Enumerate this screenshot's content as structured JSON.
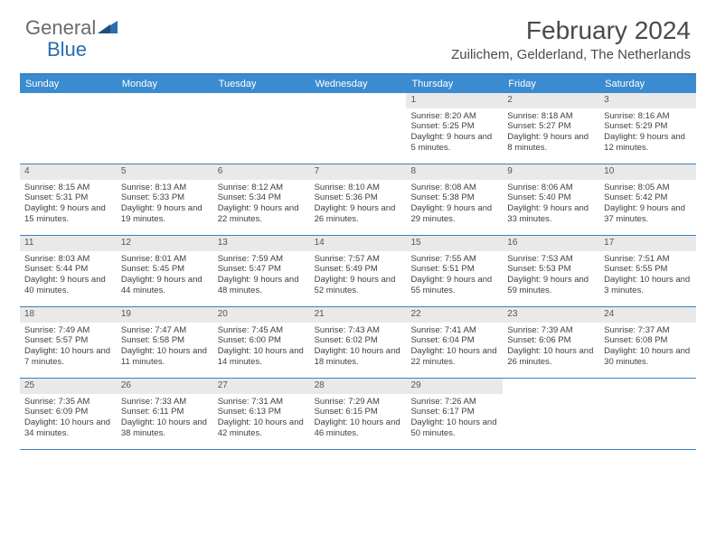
{
  "logo": {
    "part1": "General",
    "part2": "Blue"
  },
  "title": "February 2024",
  "location": "Zuilichem, Gelderland, The Netherlands",
  "colors": {
    "header_bg": "#3b8bd0",
    "rule": "#3b7fbf",
    "daynum_bg": "#e9e9e9",
    "logo_gray": "#6a6a6a",
    "logo_blue": "#2a6db0",
    "text": "#404040"
  },
  "day_headers": [
    "Sunday",
    "Monday",
    "Tuesday",
    "Wednesday",
    "Thursday",
    "Friday",
    "Saturday"
  ],
  "weeks": [
    [
      {
        "empty": true
      },
      {
        "empty": true
      },
      {
        "empty": true
      },
      {
        "empty": true
      },
      {
        "n": "1",
        "sr": "8:20 AM",
        "ss": "5:25 PM",
        "dl": "9 hours and 5 minutes."
      },
      {
        "n": "2",
        "sr": "8:18 AM",
        "ss": "5:27 PM",
        "dl": "9 hours and 8 minutes."
      },
      {
        "n": "3",
        "sr": "8:16 AM",
        "ss": "5:29 PM",
        "dl": "9 hours and 12 minutes."
      }
    ],
    [
      {
        "n": "4",
        "sr": "8:15 AM",
        "ss": "5:31 PM",
        "dl": "9 hours and 15 minutes."
      },
      {
        "n": "5",
        "sr": "8:13 AM",
        "ss": "5:33 PM",
        "dl": "9 hours and 19 minutes."
      },
      {
        "n": "6",
        "sr": "8:12 AM",
        "ss": "5:34 PM",
        "dl": "9 hours and 22 minutes."
      },
      {
        "n": "7",
        "sr": "8:10 AM",
        "ss": "5:36 PM",
        "dl": "9 hours and 26 minutes."
      },
      {
        "n": "8",
        "sr": "8:08 AM",
        "ss": "5:38 PM",
        "dl": "9 hours and 29 minutes."
      },
      {
        "n": "9",
        "sr": "8:06 AM",
        "ss": "5:40 PM",
        "dl": "9 hours and 33 minutes."
      },
      {
        "n": "10",
        "sr": "8:05 AM",
        "ss": "5:42 PM",
        "dl": "9 hours and 37 minutes."
      }
    ],
    [
      {
        "n": "11",
        "sr": "8:03 AM",
        "ss": "5:44 PM",
        "dl": "9 hours and 40 minutes."
      },
      {
        "n": "12",
        "sr": "8:01 AM",
        "ss": "5:45 PM",
        "dl": "9 hours and 44 minutes."
      },
      {
        "n": "13",
        "sr": "7:59 AM",
        "ss": "5:47 PM",
        "dl": "9 hours and 48 minutes."
      },
      {
        "n": "14",
        "sr": "7:57 AM",
        "ss": "5:49 PM",
        "dl": "9 hours and 52 minutes."
      },
      {
        "n": "15",
        "sr": "7:55 AM",
        "ss": "5:51 PM",
        "dl": "9 hours and 55 minutes."
      },
      {
        "n": "16",
        "sr": "7:53 AM",
        "ss": "5:53 PM",
        "dl": "9 hours and 59 minutes."
      },
      {
        "n": "17",
        "sr": "7:51 AM",
        "ss": "5:55 PM",
        "dl": "10 hours and 3 minutes."
      }
    ],
    [
      {
        "n": "18",
        "sr": "7:49 AM",
        "ss": "5:57 PM",
        "dl": "10 hours and 7 minutes."
      },
      {
        "n": "19",
        "sr": "7:47 AM",
        "ss": "5:58 PM",
        "dl": "10 hours and 11 minutes."
      },
      {
        "n": "20",
        "sr": "7:45 AM",
        "ss": "6:00 PM",
        "dl": "10 hours and 14 minutes."
      },
      {
        "n": "21",
        "sr": "7:43 AM",
        "ss": "6:02 PM",
        "dl": "10 hours and 18 minutes."
      },
      {
        "n": "22",
        "sr": "7:41 AM",
        "ss": "6:04 PM",
        "dl": "10 hours and 22 minutes."
      },
      {
        "n": "23",
        "sr": "7:39 AM",
        "ss": "6:06 PM",
        "dl": "10 hours and 26 minutes."
      },
      {
        "n": "24",
        "sr": "7:37 AM",
        "ss": "6:08 PM",
        "dl": "10 hours and 30 minutes."
      }
    ],
    [
      {
        "n": "25",
        "sr": "7:35 AM",
        "ss": "6:09 PM",
        "dl": "10 hours and 34 minutes."
      },
      {
        "n": "26",
        "sr": "7:33 AM",
        "ss": "6:11 PM",
        "dl": "10 hours and 38 minutes."
      },
      {
        "n": "27",
        "sr": "7:31 AM",
        "ss": "6:13 PM",
        "dl": "10 hours and 42 minutes."
      },
      {
        "n": "28",
        "sr": "7:29 AM",
        "ss": "6:15 PM",
        "dl": "10 hours and 46 minutes."
      },
      {
        "n": "29",
        "sr": "7:26 AM",
        "ss": "6:17 PM",
        "dl": "10 hours and 50 minutes."
      },
      {
        "empty": true
      },
      {
        "empty": true
      }
    ]
  ],
  "labels": {
    "sunrise": "Sunrise: ",
    "sunset": "Sunset: ",
    "daylight": "Daylight: "
  }
}
